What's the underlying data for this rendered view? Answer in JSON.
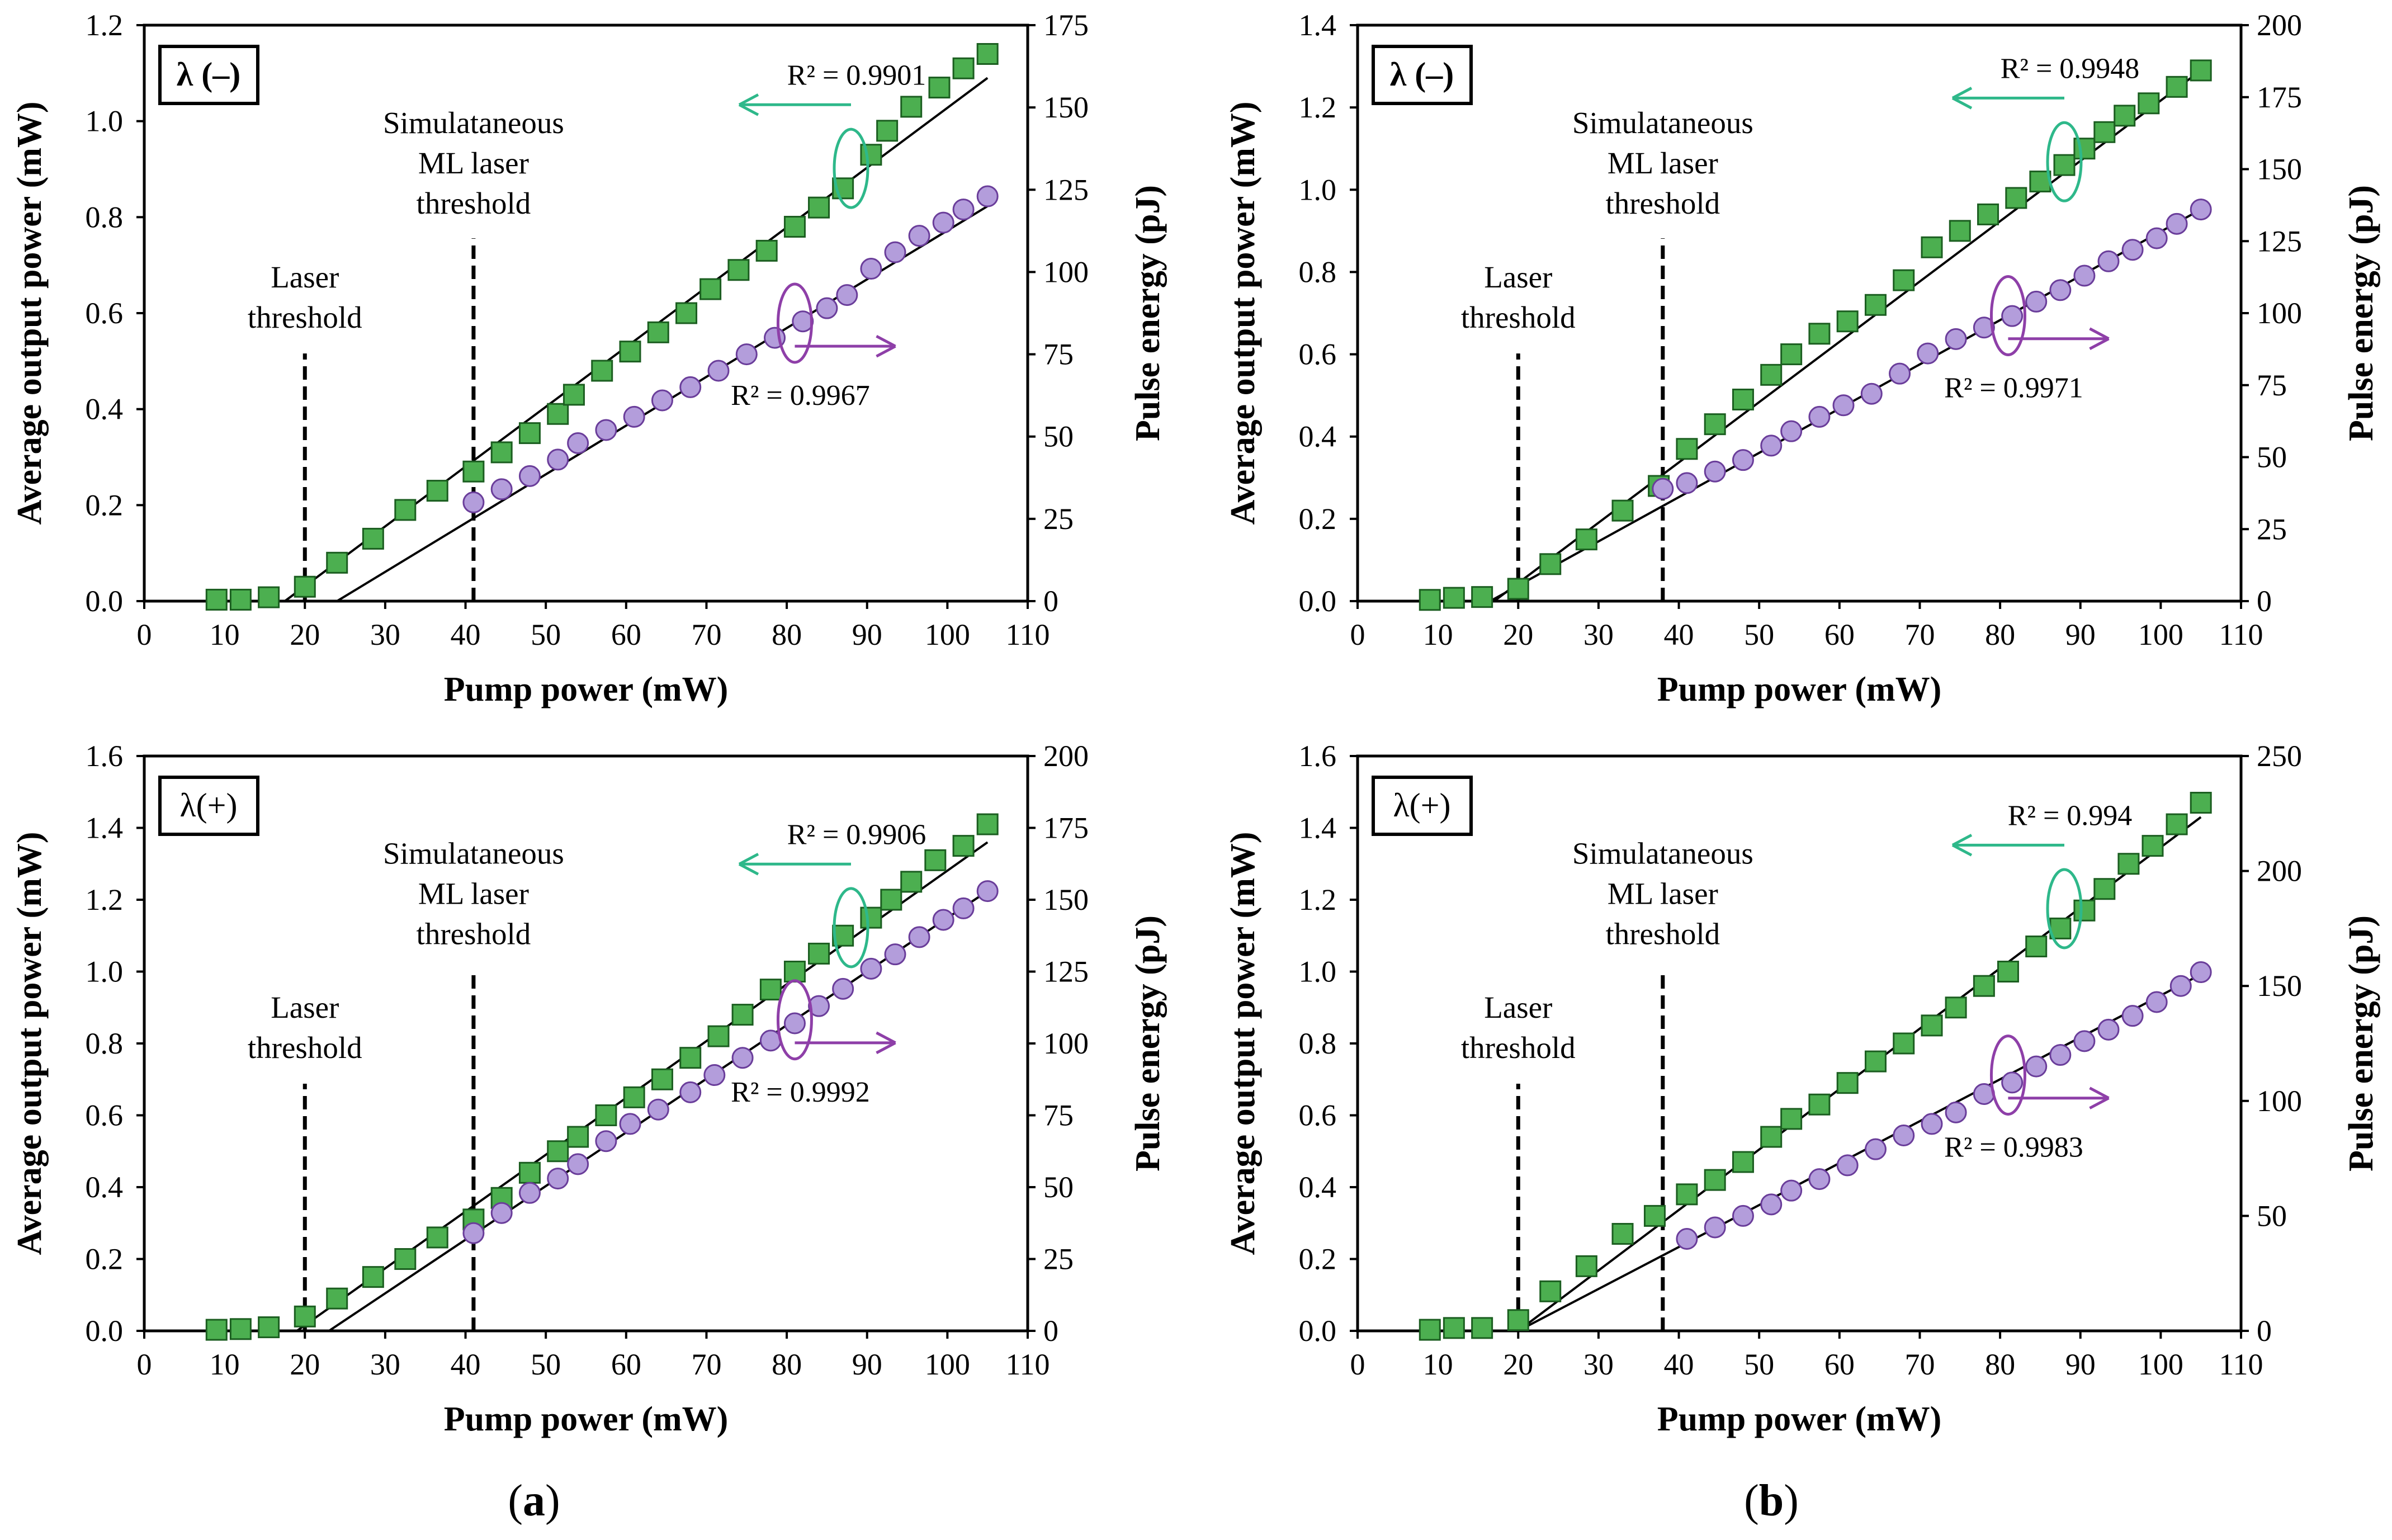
{
  "figure": {
    "colors": {
      "square_fill": "#4caf50",
      "square_edge": "#1b5e20",
      "circle_fill": "#b39ddb",
      "circle_edge": "#6a3d9a",
      "power_arrow": "#2eb88a",
      "energy_arrow": "#8e3fa8",
      "axis": "#000000"
    },
    "panel_labels": [
      {
        "column": "a",
        "open": "(",
        "letter": "a",
        "close": ")"
      },
      {
        "column": "b",
        "open": "(",
        "letter": "b",
        "close": ")"
      }
    ]
  },
  "chart_data": [
    {
      "type": "scatter",
      "panel": "a-top",
      "box_label": "λ (–)",
      "xlabel": "Pump power (mW)",
      "ylabel_left": "Average output power (mW)",
      "ylabel_right": "Pulse energy (pJ)",
      "xlim": [
        0,
        110
      ],
      "ylim_left": [
        0,
        1.2
      ],
      "ylim_right": [
        0,
        175
      ],
      "xticks": [
        0,
        10,
        20,
        30,
        40,
        50,
        60,
        70,
        80,
        90,
        100,
        110
      ],
      "yticks_left": [
        "0.0",
        "0.2",
        "0.4",
        "0.6",
        "0.8",
        "1.0",
        "1.2"
      ],
      "yticks_right": [
        "0",
        "25",
        "50",
        "75",
        "100",
        "125",
        "150",
        "175"
      ],
      "threshold_laser": {
        "x": 20,
        "label": [
          "Laser",
          "threshold"
        ]
      },
      "threshold_ml": {
        "x": 41,
        "label": [
          "Simulataneous",
          "ML laser",
          "threshold"
        ]
      },
      "r2_power": "R² = 0.9901",
      "r2_energy": "R² = 0.9967",
      "series": [
        {
          "name": "Average output power (mW)",
          "axis": "left",
          "marker": "square",
          "x": [
            9,
            12,
            15.5,
            20,
            24,
            28.5,
            32.5,
            36.5,
            41,
            44.5,
            48,
            51.5,
            53.5,
            57,
            60.5,
            64,
            67.5,
            70.5,
            74,
            77.5,
            81,
            84,
            87,
            90.5,
            92.5,
            95.5,
            99,
            102,
            105
          ],
          "y": [
            0.003,
            0.003,
            0.008,
            0.03,
            0.08,
            0.13,
            0.19,
            0.23,
            0.27,
            0.31,
            0.35,
            0.39,
            0.43,
            0.48,
            0.52,
            0.56,
            0.6,
            0.65,
            0.69,
            0.73,
            0.78,
            0.82,
            0.86,
            0.93,
            0.98,
            1.03,
            1.07,
            1.11,
            1.14
          ]
        },
        {
          "name": "Pulse energy (pJ)",
          "axis": "right",
          "marker": "circle",
          "x": [
            41,
            44.5,
            48,
            51.5,
            54,
            57.5,
            61,
            64.5,
            68,
            71.5,
            75,
            78.5,
            82,
            85,
            87.5,
            90.5,
            93.5,
            96.5,
            99.5,
            102,
            105
          ],
          "y": [
            30,
            34,
            38,
            43,
            48,
            52,
            56,
            61,
            65,
            70,
            75,
            80,
            85,
            89,
            93,
            101,
            106,
            111,
            115,
            119,
            123
          ]
        }
      ],
      "fits": [
        {
          "axis": "left",
          "x0": 17.5,
          "x1": 105,
          "y0": 0,
          "y1": 1.09
        },
        {
          "axis": "right",
          "x0": 24,
          "x1": 105,
          "y0": 0,
          "y1": 120
        }
      ]
    },
    {
      "type": "scatter",
      "panel": "b-top",
      "box_label": "λ (–)",
      "xlabel": "Pump power (mW)",
      "ylabel_left": "Average output power (mW)",
      "ylabel_right": "Pulse energy (pJ)",
      "xlim": [
        0,
        110
      ],
      "ylim_left": [
        0,
        1.4
      ],
      "ylim_right": [
        0,
        200
      ],
      "xticks": [
        0,
        10,
        20,
        30,
        40,
        50,
        60,
        70,
        80,
        90,
        100,
        110
      ],
      "yticks_left": [
        "0.0",
        "0.2",
        "0.4",
        "0.6",
        "0.8",
        "1.0",
        "1.2",
        "1.4"
      ],
      "yticks_right": [
        "0",
        "25",
        "50",
        "75",
        "100",
        "125",
        "150",
        "175",
        "200"
      ],
      "threshold_laser": {
        "x": 20,
        "label": [
          "Laser",
          "threshold"
        ]
      },
      "threshold_ml": {
        "x": 38,
        "label": [
          "Simulataneous",
          "ML laser",
          "threshold"
        ]
      },
      "r2_power": "R² = 0.9948",
      "r2_energy": "R² = 0.9971",
      "series": [
        {
          "name": "Average output power (mW)",
          "axis": "left",
          "marker": "square",
          "x": [
            9,
            12,
            15.5,
            20,
            24,
            28.5,
            33,
            37.5,
            41,
            44.5,
            48,
            51.5,
            54,
            57.5,
            61,
            64.5,
            68,
            71.5,
            75,
            78.5,
            82,
            85,
            88,
            90.5,
            93,
            95.5,
            98.5,
            102,
            105
          ],
          "y": [
            0.003,
            0.008,
            0.01,
            0.03,
            0.09,
            0.15,
            0.22,
            0.28,
            0.37,
            0.43,
            0.49,
            0.55,
            0.6,
            0.65,
            0.68,
            0.72,
            0.78,
            0.86,
            0.9,
            0.94,
            0.98,
            1.02,
            1.06,
            1.1,
            1.14,
            1.18,
            1.21,
            1.25,
            1.29
          ]
        },
        {
          "name": "Pulse energy (pJ)",
          "axis": "right",
          "marker": "circle",
          "x": [
            38,
            41,
            44.5,
            48,
            51.5,
            54,
            57.5,
            60.5,
            64,
            67.5,
            71,
            74.5,
            78,
            81.5,
            84.5,
            87.5,
            90.5,
            93.5,
            96.5,
            99.5,
            102,
            105
          ],
          "y": [
            39,
            41,
            45,
            49,
            54,
            59,
            64,
            68,
            72,
            79,
            86,
            91,
            95,
            99,
            104,
            108,
            113,
            118,
            122,
            126,
            131,
            136
          ]
        }
      ],
      "fits": [
        {
          "axis": "left",
          "x0": 17,
          "x1": 105,
          "y0": 0,
          "y1": 1.29
        },
        {
          "axis": "right",
          "x0": 16.5,
          "x1": 105,
          "y0": 0,
          "y1": 136
        }
      ]
    },
    {
      "type": "scatter",
      "panel": "a-bottom",
      "box_label": "λ(+)",
      "xlabel": "Pump power (mW)",
      "ylabel_left": "Average output power (mW)",
      "ylabel_right": "Pulse energy (pJ)",
      "xlim": [
        0,
        110
      ],
      "ylim_left": [
        0,
        1.6
      ],
      "ylim_right": [
        0,
        200
      ],
      "xticks": [
        0,
        10,
        20,
        30,
        40,
        50,
        60,
        70,
        80,
        90,
        100,
        110
      ],
      "yticks_left": [
        "0.0",
        "0.2",
        "0.4",
        "0.6",
        "0.8",
        "1.0",
        "1.2",
        "1.4",
        "1.6"
      ],
      "yticks_right": [
        "0",
        "25",
        "50",
        "75",
        "100",
        "125",
        "150",
        "175",
        "200"
      ],
      "threshold_laser": {
        "x": 20,
        "label": [
          "Laser",
          "threshold"
        ]
      },
      "threshold_ml": {
        "x": 41,
        "label": [
          "Simulataneous",
          "ML laser",
          "threshold"
        ]
      },
      "r2_power": "R² = 0.9906",
      "r2_energy": "R² = 0.9992",
      "series": [
        {
          "name": "Average output power (mW)",
          "axis": "left",
          "marker": "square",
          "x": [
            9,
            12,
            15.5,
            20,
            24,
            28.5,
            32.5,
            36.5,
            41,
            44.5,
            48,
            51.5,
            54,
            57.5,
            61,
            64.5,
            68,
            71.5,
            74.5,
            78,
            81,
            84,
            87,
            90.5,
            93,
            95.5,
            98.5,
            102,
            105
          ],
          "y": [
            0.003,
            0.005,
            0.01,
            0.04,
            0.09,
            0.15,
            0.2,
            0.26,
            0.31,
            0.37,
            0.44,
            0.5,
            0.54,
            0.6,
            0.65,
            0.7,
            0.76,
            0.82,
            0.88,
            0.95,
            1.0,
            1.05,
            1.1,
            1.15,
            1.2,
            1.25,
            1.31,
            1.35,
            1.41
          ]
        },
        {
          "name": "Pulse energy (pJ)",
          "axis": "right",
          "marker": "circle",
          "x": [
            41,
            44.5,
            48,
            51.5,
            54,
            57.5,
            60.5,
            64,
            68,
            71,
            74.5,
            78,
            81,
            84,
            87,
            90.5,
            93.5,
            96.5,
            99.5,
            102,
            105
          ],
          "y": [
            34,
            41,
            48,
            53,
            58,
            66,
            72,
            77,
            83,
            89,
            95,
            101,
            107,
            113,
            119,
            126,
            131,
            137,
            143,
            147,
            153
          ]
        }
      ],
      "fits": [
        {
          "axis": "left",
          "x0": 19,
          "x1": 105,
          "y0": 0,
          "y1": 1.36
        },
        {
          "axis": "right",
          "x0": 23,
          "x1": 105,
          "y0": 0,
          "y1": 153
        }
      ]
    },
    {
      "type": "scatter",
      "panel": "b-bottom",
      "box_label": "λ(+)",
      "xlabel": "Pump power (mW)",
      "ylabel_left": "Average output power (mW)",
      "ylabel_right": "Pulse energy (pJ)",
      "xlim": [
        0,
        110
      ],
      "ylim_left": [
        0,
        1.6
      ],
      "ylim_right": [
        0,
        250
      ],
      "xticks": [
        0,
        10,
        20,
        30,
        40,
        50,
        60,
        70,
        80,
        90,
        100,
        110
      ],
      "yticks_left": [
        "0.0",
        "0.2",
        "0.4",
        "0.6",
        "0.8",
        "1.0",
        "1.2",
        "1.4",
        "1.6"
      ],
      "yticks_right": [
        "0",
        "50",
        "100",
        "150",
        "200",
        "250"
      ],
      "threshold_laser": {
        "x": 20,
        "label": [
          "Laser",
          "threshold"
        ]
      },
      "threshold_ml": {
        "x": 38,
        "label": [
          "Simulataneous",
          "ML laser",
          "threshold"
        ]
      },
      "r2_power": "R² = 0.994",
      "r2_energy": "R² = 0.9983",
      "series": [
        {
          "name": "Average output power (mW)",
          "axis": "left",
          "marker": "square",
          "x": [
            9,
            12,
            15.5,
            20,
            24,
            28.5,
            33,
            37,
            41,
            44.5,
            48,
            51.5,
            54,
            57.5,
            61,
            64.5,
            68,
            71.5,
            74.5,
            78,
            81,
            84.5,
            87.5,
            90.5,
            93,
            96,
            99,
            102,
            105
          ],
          "y": [
            0.003,
            0.008,
            0.008,
            0.03,
            0.11,
            0.18,
            0.27,
            0.32,
            0.38,
            0.42,
            0.47,
            0.54,
            0.59,
            0.63,
            0.69,
            0.75,
            0.8,
            0.85,
            0.9,
            0.96,
            1.0,
            1.07,
            1.12,
            1.17,
            1.23,
            1.3,
            1.35,
            1.41,
            1.47
          ]
        },
        {
          "name": "Pulse energy (pJ)",
          "axis": "right",
          "marker": "circle",
          "x": [
            41,
            44.5,
            48,
            51.5,
            54,
            57.5,
            61,
            64.5,
            68,
            71.5,
            74.5,
            78,
            81.5,
            84.5,
            87.5,
            90.5,
            93.5,
            96.5,
            99.5,
            102.5,
            105
          ],
          "y": [
            40,
            45,
            50,
            55,
            61,
            66,
            72,
            79,
            85,
            90,
            95,
            103,
            108,
            115,
            120,
            126,
            131,
            137,
            143,
            150,
            156
          ]
        }
      ],
      "fits": [
        {
          "axis": "left",
          "x0": 20,
          "x1": 105,
          "y0": 0,
          "y1": 1.43
        },
        {
          "axis": "right",
          "x0": 20,
          "x1": 105,
          "y0": 0,
          "y1": 155
        }
      ]
    }
  ]
}
